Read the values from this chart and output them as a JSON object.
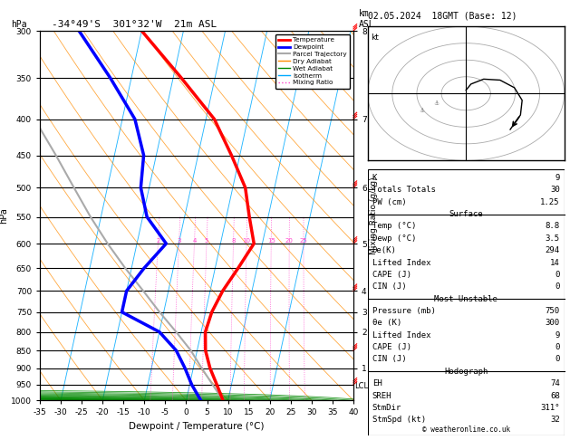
{
  "title_left": "-34°49'S  301°32'W  21m ASL",
  "title_right": "02.05.2024  18GMT (Base: 12)",
  "xlabel": "Dewpoint / Temperature (°C)",
  "ylabel_left": "hPa",
  "pressure_levels": [
    300,
    350,
    400,
    450,
    500,
    550,
    600,
    650,
    700,
    750,
    800,
    850,
    900,
    950,
    1000
  ],
  "km_levels": [
    {
      "p": 300,
      "km": 8
    },
    {
      "p": 400,
      "km": 7
    },
    {
      "p": 500,
      "km": 6
    },
    {
      "p": 600,
      "km": 5
    },
    {
      "p": 700,
      "km": 4
    },
    {
      "p": 750,
      "km": 3
    },
    {
      "p": 800,
      "km": 2
    },
    {
      "p": 900,
      "km": 1
    }
  ],
  "temp_profile": {
    "pressure": [
      1000,
      950,
      900,
      850,
      800,
      750,
      700,
      650,
      600,
      550,
      500,
      450,
      400,
      350,
      300
    ],
    "temp": [
      8.8,
      6.5,
      4.0,
      2.0,
      1.0,
      1.5,
      3.0,
      5.5,
      8.0,
      5.5,
      3.0,
      -2.0,
      -8.0,
      -18.0,
      -30.0
    ]
  },
  "dewp_profile": {
    "pressure": [
      1000,
      950,
      900,
      850,
      800,
      750,
      700,
      650,
      600,
      550,
      500,
      450,
      400,
      350,
      300
    ],
    "temp": [
      3.5,
      0.5,
      -2.0,
      -5.0,
      -10.0,
      -20.0,
      -20.0,
      -17.0,
      -13.0,
      -19.0,
      -22.0,
      -23.0,
      -27.0,
      -35.0,
      -45.0
    ]
  },
  "parcel_profile": {
    "pressure": [
      1000,
      950,
      900,
      850,
      800,
      750,
      700,
      650,
      600,
      550,
      500,
      450,
      400,
      350,
      300
    ],
    "temp": [
      8.8,
      5.5,
      2.0,
      -1.5,
      -6.0,
      -11.0,
      -16.0,
      -21.5,
      -27.0,
      -32.5,
      -38.0,
      -44.0,
      -51.0,
      -59.0,
      -68.0
    ]
  },
  "x_range": [
    -35,
    40
  ],
  "mixing_ratio_values": [
    2,
    3,
    4,
    5,
    8,
    10,
    15,
    20,
    25
  ],
  "lcl_pressure": 954,
  "stats": {
    "K": 9,
    "Totals_Totals": 30,
    "PW_cm": 1.25,
    "Surface_Temp": 8.8,
    "Surface_Dewp": 3.5,
    "Surface_ThetaE": 294,
    "Surface_LI": 14,
    "Surface_CAPE": 0,
    "Surface_CIN": 0,
    "MU_Pressure": 750,
    "MU_ThetaE": 300,
    "MU_LI": 9,
    "MU_CAPE": 0,
    "MU_CIN": 0,
    "EH": 74,
    "SREH": 68,
    "StmDir": 311,
    "StmSpd": 32
  },
  "colors": {
    "temp": "#ff0000",
    "dewp": "#0000ff",
    "parcel": "#aaaaaa",
    "dry_adiabat": "#ff8c00",
    "wet_adiabat": "#008800",
    "isotherm": "#00aaff",
    "mixing_ratio": "#ff44cc",
    "background": "#ffffff",
    "wind_barb": "#ff0000"
  }
}
